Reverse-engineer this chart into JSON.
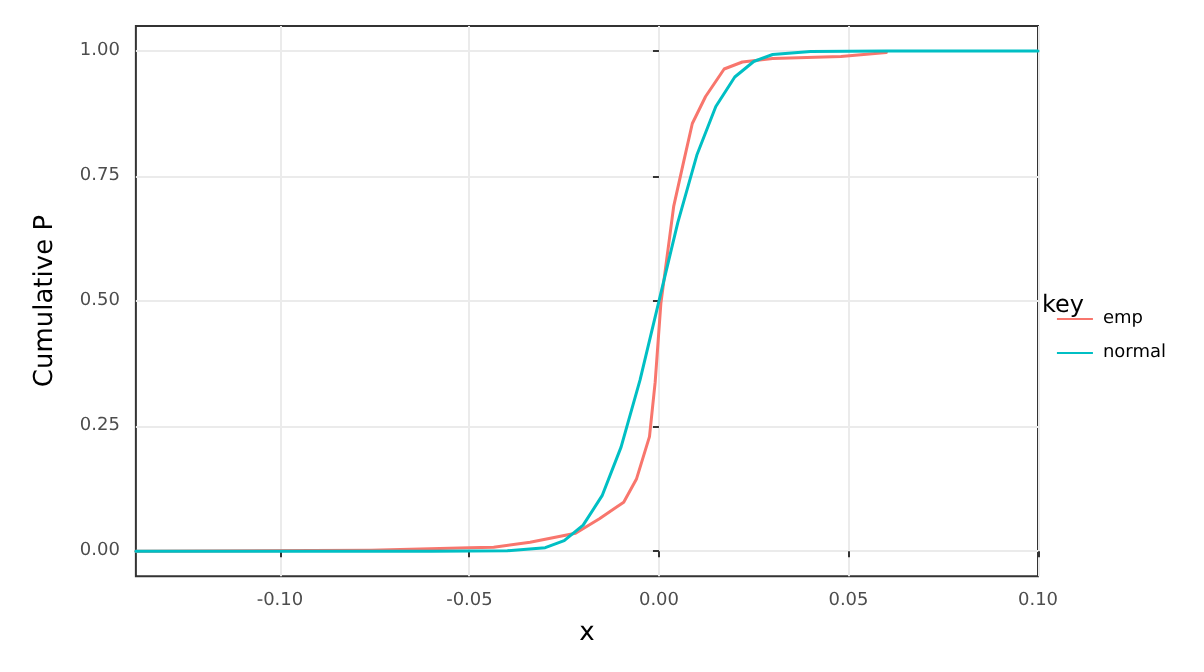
{
  "chart_data": {
    "type": "line",
    "xlabel": "x",
    "ylabel": "Cumulative P",
    "legend_title": "key",
    "legend": "right",
    "grid": true,
    "marker": "none",
    "line_style": "solid",
    "xlim": [
      -0.138,
      0.1
    ],
    "ylim": [
      -0.05,
      1.05
    ],
    "xticks": [
      {
        "value": -0.1,
        "label": "-0.10"
      },
      {
        "value": -0.05,
        "label": "-0.05"
      },
      {
        "value": 0,
        "label": "0.00"
      },
      {
        "value": 0.05,
        "label": "0.05"
      },
      {
        "value": 0.1,
        "label": "0.10"
      }
    ],
    "yticks": [
      {
        "value": 0,
        "label": "0.00"
      },
      {
        "value": 0.25,
        "label": "0.25"
      },
      {
        "value": 0.5,
        "label": "0.50"
      },
      {
        "value": 0.75,
        "label": "0.75"
      },
      {
        "value": 1,
        "label": "1.00"
      }
    ],
    "series": [
      {
        "name": "emp",
        "color": "#f8766d",
        "x": [
          -0.138,
          -0.076,
          -0.05,
          -0.0436,
          -0.034,
          -0.022,
          -0.0157,
          -0.0093,
          -0.0059,
          -0.0025,
          -0.001,
          0.0005,
          0.0024,
          0.0039,
          0.0064,
          0.0088,
          0.0123,
          0.0172,
          0.022,
          0.03,
          0.048,
          0.06
        ],
        "values": [
          0,
          0.002,
          0.007,
          0.008,
          0.018,
          0.036,
          0.065,
          0.098,
          0.145,
          0.229,
          0.338,
          0.495,
          0.604,
          0.69,
          0.775,
          0.855,
          0.909,
          0.964,
          0.978,
          0.985,
          0.989,
          0.997
        ]
      },
      {
        "name": "normal",
        "color": "#00bfc4",
        "x": [
          -0.138,
          -0.06,
          -0.04,
          -0.03,
          -0.025,
          -0.02,
          -0.015,
          -0.01,
          -0.005,
          0,
          0.005,
          0.01,
          0.015,
          0.02,
          0.025,
          0.03,
          0.04,
          0.06,
          0.1
        ],
        "values": [
          0,
          0,
          0.001,
          0.007,
          0.021,
          0.052,
          0.111,
          0.208,
          0.342,
          0.5,
          0.658,
          0.792,
          0.889,
          0.948,
          0.979,
          0.993,
          0.999,
          1,
          1
        ]
      }
    ]
  }
}
